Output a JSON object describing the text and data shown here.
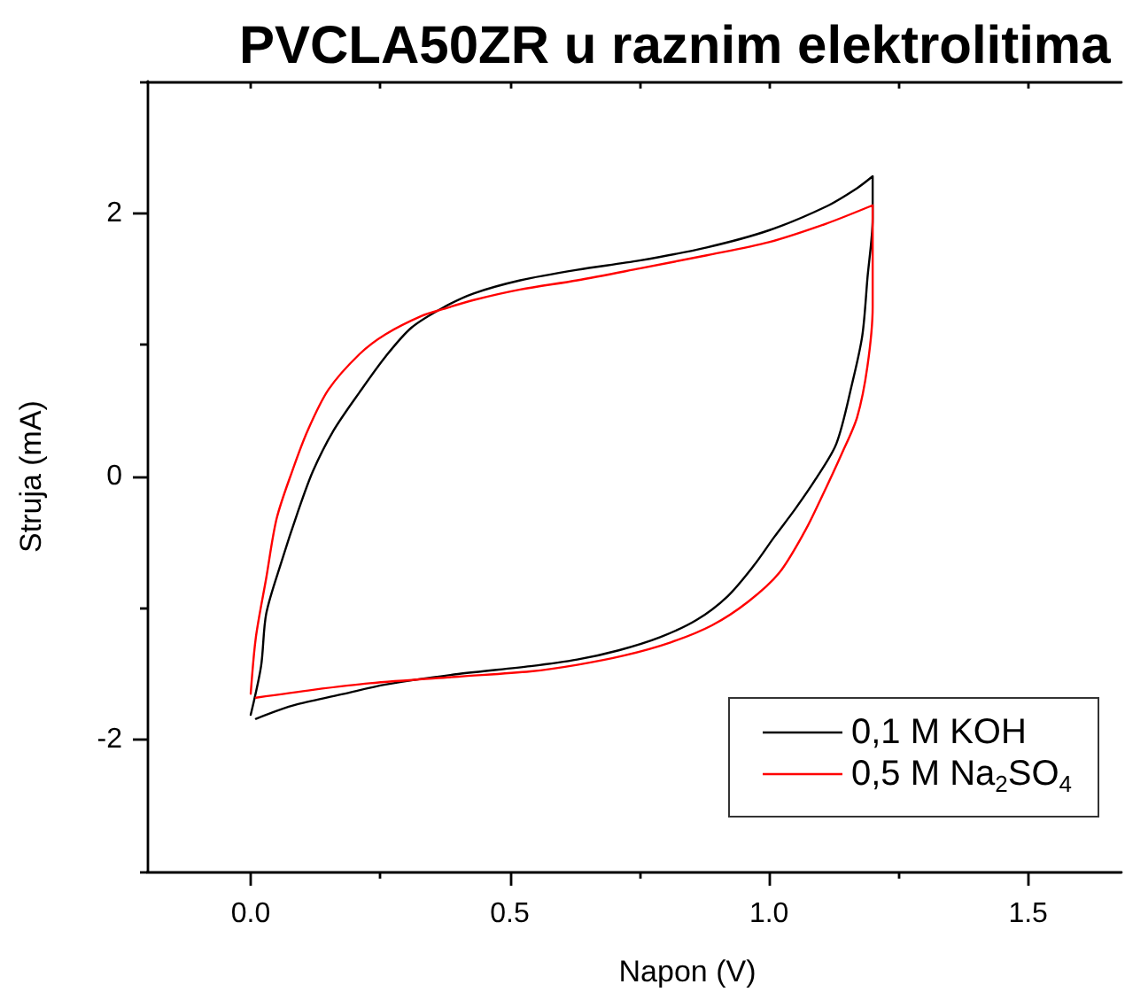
{
  "chart_data": {
    "type": "line",
    "title": "PVCLA50ZR u raznim elektrolitima",
    "xlabel": "Napon (V)",
    "ylabel": "Struja (mA)",
    "series": [
      {
        "name": "0,1 M KOH",
        "color": "#000000",
        "x": [
          0.0,
          0.02,
          0.03,
          0.06,
          0.09,
          0.12,
          0.16,
          0.21,
          0.26,
          0.31,
          0.37,
          0.43,
          0.52,
          0.63,
          0.75,
          0.88,
          1.0,
          1.11,
          1.17,
          1.2,
          1.2,
          1.19,
          1.18,
          1.16,
          1.13,
          1.09,
          1.05,
          1.01,
          0.97,
          0.92,
          0.86,
          0.79,
          0.71,
          0.63,
          0.54,
          0.4,
          0.26,
          0.18,
          0.09,
          0.05,
          0.01
        ],
        "values": [
          -1.81,
          -1.44,
          -1.04,
          -0.64,
          -0.28,
          0.04,
          0.35,
          0.64,
          0.91,
          1.13,
          1.28,
          1.39,
          1.49,
          1.57,
          1.64,
          1.74,
          1.87,
          2.05,
          2.19,
          2.28,
          1.96,
          1.51,
          1.07,
          0.7,
          0.25,
          -0.02,
          -0.25,
          -0.46,
          -0.68,
          -0.91,
          -1.09,
          -1.22,
          -1.32,
          -1.39,
          -1.44,
          -1.5,
          -1.58,
          -1.65,
          -1.73,
          -1.78,
          -1.84
        ]
      },
      {
        "name": "0,5 M Na$_{2}$SO$_{4}$",
        "color": "#ff0000",
        "x": [
          0.0,
          0.01,
          0.03,
          0.05,
          0.08,
          0.11,
          0.15,
          0.21,
          0.26,
          0.33,
          0.37,
          0.43,
          0.52,
          0.63,
          0.75,
          0.88,
          1.0,
          1.11,
          1.2,
          1.2,
          1.2,
          1.19,
          1.17,
          1.14,
          1.1,
          1.07,
          1.02,
          0.96,
          0.89,
          0.81,
          0.72,
          0.63,
          0.54,
          0.4,
          0.23,
          0.12,
          0.01
        ],
        "values": [
          -1.65,
          -1.22,
          -0.77,
          -0.32,
          0.04,
          0.35,
          0.66,
          0.93,
          1.08,
          1.22,
          1.27,
          1.34,
          1.42,
          1.49,
          1.58,
          1.68,
          1.78,
          1.92,
          2.06,
          1.74,
          1.29,
          0.84,
          0.45,
          0.17,
          -0.17,
          -0.41,
          -0.73,
          -0.95,
          -1.13,
          -1.26,
          -1.36,
          -1.43,
          -1.48,
          -1.52,
          -1.57,
          -1.62,
          -1.68
        ]
      }
    ],
    "xlim": [
      -0.2,
      1.68
    ],
    "xticks": [
      {
        "value": 0,
        "label": "0.0"
      },
      {
        "value": 0.25,
        "label": null
      },
      0.5,
      {
        "value": 0.75,
        "label": null
      },
      {
        "value": 1,
        "label": "1.0"
      },
      {
        "value": 1.25,
        "label": null
      },
      1.5
    ],
    "ylim": [
      -3,
      3
    ],
    "yticks": [
      {
        "value": -3,
        "label": null
      },
      -2,
      {
        "value": -1,
        "label": null
      },
      0,
      {
        "value": 1,
        "label": null
      },
      2,
      {
        "value": 3,
        "label": null
      }
    ],
    "legend": "bottom right",
    "marker": "none",
    "line_style": "solid"
  }
}
